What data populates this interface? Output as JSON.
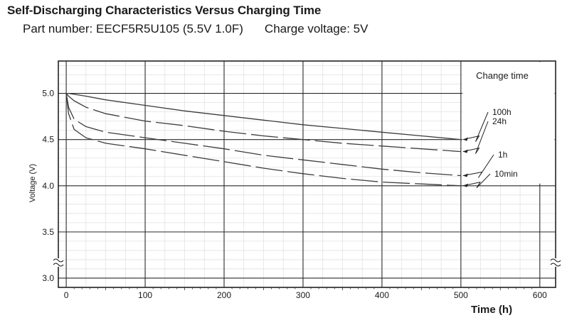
{
  "header": {
    "title": "Self-Discharging Characteristics Versus Charging Time",
    "part_number_text": "Part number: EECF5R5U105 (5.5V 1.0F)",
    "charge_voltage_text": "Charge voltage: 5V"
  },
  "chart_data": {
    "type": "line",
    "title": "Self-Discharging Characteristics Versus Charging Time",
    "xlabel": "Time (h)",
    "ylabel": "Voltage (V)",
    "xlim": [
      -10,
      620
    ],
    "ylim": [
      2.9,
      5.35
    ],
    "x_ticks": [
      0,
      100,
      200,
      300,
      400,
      500,
      600
    ],
    "y_ticks": [
      3.0,
      3.5,
      4.0,
      4.5,
      5.0
    ],
    "y_tick_labels": [
      "3.0",
      "3.5",
      "4.0",
      "4.5",
      "5.0"
    ],
    "x_tick_labels": [
      "0",
      "100",
      "200",
      "300",
      "400",
      "500",
      "600"
    ],
    "grid": true,
    "legend_title": "Change time",
    "series": [
      {
        "name": "100h",
        "style": "solid",
        "x": [
          0,
          3,
          10,
          25,
          50,
          100,
          150,
          200,
          250,
          300,
          350,
          400,
          450,
          500
        ],
        "y": [
          5.0,
          5.0,
          4.99,
          4.97,
          4.93,
          4.87,
          4.81,
          4.76,
          4.71,
          4.66,
          4.62,
          4.58,
          4.54,
          4.5
        ]
      },
      {
        "name": "24h",
        "style": "dashed",
        "x": [
          0,
          3,
          10,
          25,
          50,
          100,
          150,
          200,
          250,
          300,
          350,
          400,
          450,
          500
        ],
        "y": [
          5.0,
          4.97,
          4.92,
          4.85,
          4.78,
          4.7,
          4.65,
          4.59,
          4.54,
          4.5,
          4.46,
          4.43,
          4.4,
          4.37
        ]
      },
      {
        "name": "1h",
        "style": "dashed",
        "x": [
          0,
          3,
          10,
          25,
          50,
          100,
          150,
          200,
          250,
          300,
          350,
          400,
          450,
          500
        ],
        "y": [
          5.0,
          4.85,
          4.72,
          4.64,
          4.58,
          4.52,
          4.46,
          4.4,
          4.33,
          4.28,
          4.23,
          4.18,
          4.14,
          4.11
        ]
      },
      {
        "name": "10min",
        "style": "dashed",
        "x": [
          0,
          3,
          10,
          25,
          50,
          100,
          150,
          200,
          250,
          300,
          350,
          400,
          450,
          500
        ],
        "y": [
          5.0,
          4.78,
          4.61,
          4.52,
          4.46,
          4.4,
          4.33,
          4.26,
          4.19,
          4.13,
          4.08,
          4.04,
          4.02,
          4.0
        ]
      }
    ]
  }
}
